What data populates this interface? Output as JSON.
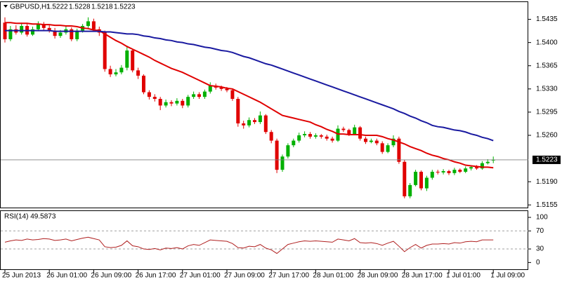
{
  "chart_data": [
    {
      "type": "candlestick",
      "title": "GBPUSD,H1",
      "categories": [
        "25 Jun 2013",
        null,
        null,
        null,
        null,
        null,
        null,
        null,
        "26 Jun 01:00",
        null,
        null,
        null,
        null,
        null,
        null,
        null,
        "26 Jun 09:00",
        null,
        null,
        null,
        null,
        null,
        null,
        null,
        "26 Jun 17:00",
        null,
        null,
        null,
        null,
        null,
        null,
        null,
        "27 Jun 01:00",
        null,
        null,
        null,
        null,
        null,
        null,
        null,
        "27 Jun 09:00",
        null,
        null,
        null,
        null,
        null,
        null,
        null,
        "27 Jun 17:00",
        null,
        null,
        null,
        null,
        null,
        null,
        null,
        "28 Jun 01:00",
        null,
        null,
        null,
        null,
        null,
        null,
        null,
        "28 Jun 09:00",
        null,
        null,
        null,
        null,
        null,
        null,
        null,
        "28 Jun 17:00",
        null,
        null,
        null,
        null,
        null,
        null,
        null,
        "1 Jul 01:00",
        null,
        null,
        null,
        null,
        null,
        null,
        null,
        "1 Jul 09:00"
      ],
      "open": [
        1.543,
        1.5405,
        1.542,
        1.5415,
        1.5425,
        1.5412,
        1.542,
        1.5428,
        1.5422,
        1.5418,
        1.541,
        1.5415,
        1.542,
        1.5405,
        1.5418,
        1.5425,
        1.5432,
        1.542,
        1.5415,
        1.536,
        1.5352,
        1.5355,
        1.5362,
        1.5388,
        1.5358,
        1.535,
        1.5325,
        1.5318,
        1.5315,
        1.5305,
        1.531,
        1.5308,
        1.5312,
        1.5305,
        1.5318,
        1.5322,
        1.5318,
        1.5326,
        1.5335,
        1.5332,
        1.533,
        1.5328,
        1.5315,
        1.5278,
        1.5275,
        1.5283,
        1.528,
        1.529,
        1.5265,
        1.5252,
        1.5208,
        1.5228,
        1.5245,
        1.5252,
        1.526,
        1.5262,
        1.5258,
        1.526,
        1.5258,
        1.5255,
        1.5252,
        1.527,
        1.5268,
        1.5262,
        1.5272,
        1.5255,
        1.525,
        1.5252,
        1.5248,
        1.5235,
        1.5245,
        1.5255,
        1.522,
        1.5168,
        1.5185,
        1.5205,
        1.518,
        1.5196,
        1.5205,
        1.5204,
        1.5206,
        1.5203,
        1.5208,
        1.5205,
        1.521,
        1.5212,
        1.521,
        1.5218,
        1.5222
      ],
      "high": [
        1.5438,
        1.5425,
        1.5426,
        1.543,
        1.5428,
        1.5424,
        1.5432,
        1.5431,
        1.5426,
        1.5422,
        1.5419,
        1.5424,
        1.5423,
        1.5421,
        1.5428,
        1.5438,
        1.5436,
        1.5424,
        1.5418,
        1.5365,
        1.536,
        1.5366,
        1.5395,
        1.539,
        1.5362,
        1.5352,
        1.5328,
        1.5322,
        1.5318,
        1.5314,
        1.5313,
        1.5316,
        1.5315,
        1.5321,
        1.5326,
        1.5325,
        1.5329,
        1.534,
        1.5338,
        1.5335,
        1.5333,
        1.533,
        1.5318,
        1.5282,
        1.5287,
        1.5286,
        1.5296,
        1.5292,
        1.5268,
        1.5255,
        1.5231,
        1.5248,
        1.5255,
        1.5264,
        1.5266,
        1.5265,
        1.5263,
        1.5262,
        1.5261,
        1.5258,
        1.5275,
        1.5273,
        1.527,
        1.5276,
        1.5274,
        1.5258,
        1.5255,
        1.5255,
        1.5251,
        1.5248,
        1.526,
        1.5258,
        1.5223,
        1.5188,
        1.5208,
        1.5207,
        1.5199,
        1.5208,
        1.5208,
        1.5209,
        1.5208,
        1.5211,
        1.521,
        1.5213,
        1.5215,
        1.5215,
        1.5221,
        1.5224,
        1.5228
      ],
      "low": [
        1.54,
        1.5402,
        1.5412,
        1.5412,
        1.5409,
        1.541,
        1.5417,
        1.5419,
        1.5415,
        1.5406,
        1.5407,
        1.5412,
        1.5402,
        1.5402,
        1.5415,
        1.5422,
        1.5417,
        1.541,
        1.5356,
        1.5348,
        1.5349,
        1.5352,
        1.5358,
        1.5355,
        1.5345,
        1.5322,
        1.5314,
        1.5311,
        1.5298,
        1.5302,
        1.5304,
        1.5305,
        1.5301,
        1.5302,
        1.5315,
        1.5315,
        1.5315,
        1.5323,
        1.5329,
        1.5327,
        1.5325,
        1.5312,
        1.5273,
        1.527,
        1.5272,
        1.5277,
        1.5277,
        1.5262,
        1.5248,
        1.5203,
        1.5205,
        1.5225,
        1.5242,
        1.5249,
        1.5257,
        1.5255,
        1.5255,
        1.5255,
        1.5252,
        1.5249,
        1.525,
        1.5265,
        1.5259,
        1.526,
        1.5252,
        1.5247,
        1.5248,
        1.5245,
        1.5232,
        1.5233,
        1.5242,
        1.5217,
        1.5165,
        1.5165,
        1.5183,
        1.5177,
        1.5176,
        1.5193,
        1.5201,
        1.5201,
        1.52,
        1.52,
        1.5203,
        1.5203,
        1.5207,
        1.5208,
        1.5208,
        1.5216,
        1.5218
      ],
      "close": [
        1.5405,
        1.542,
        1.5415,
        1.5425,
        1.5412,
        1.542,
        1.5428,
        1.5422,
        1.5418,
        1.541,
        1.5415,
        1.542,
        1.5405,
        1.5418,
        1.5425,
        1.5432,
        1.542,
        1.5415,
        1.536,
        1.5352,
        1.5355,
        1.5362,
        1.5388,
        1.5358,
        1.535,
        1.5325,
        1.5318,
        1.5315,
        1.5305,
        1.531,
        1.5308,
        1.5312,
        1.5305,
        1.5318,
        1.5322,
        1.5318,
        1.5326,
        1.5335,
        1.5332,
        1.533,
        1.5328,
        1.5315,
        1.5278,
        1.5275,
        1.5283,
        1.528,
        1.529,
        1.5265,
        1.5252,
        1.5208,
        1.5228,
        1.5245,
        1.5252,
        1.526,
        1.5262,
        1.5258,
        1.526,
        1.5258,
        1.5255,
        1.5252,
        1.527,
        1.5268,
        1.5262,
        1.5272,
        1.5255,
        1.525,
        1.5252,
        1.5248,
        1.5235,
        1.5245,
        1.5255,
        1.522,
        1.5168,
        1.5185,
        1.5205,
        1.518,
        1.5196,
        1.5205,
        1.5204,
        1.5206,
        1.5203,
        1.5208,
        1.5205,
        1.521,
        1.5212,
        1.521,
        1.5218,
        1.522,
        1.5223
      ],
      "up_color": "#00b000",
      "down_color": "#e00000",
      "overlays": [
        {
          "color": "#e00000",
          "values": [
            1.543,
            1.543,
            1.5429,
            1.5429,
            1.5429,
            1.5428,
            1.5428,
            1.5427,
            1.5427,
            1.5426,
            1.5426,
            1.5425,
            1.5425,
            1.5424,
            1.5422,
            1.5421,
            1.5419,
            1.5418,
            1.5413,
            1.5408,
            1.5403,
            1.5399,
            1.5394,
            1.539,
            1.5386,
            1.5382,
            1.5378,
            1.5373,
            1.5369,
            1.5365,
            1.5361,
            1.5358,
            1.5355,
            1.5351,
            1.5347,
            1.5343,
            1.5339,
            1.5335,
            1.5334,
            1.5333,
            1.5331,
            1.533,
            1.5326,
            1.5322,
            1.5318,
            1.5314,
            1.531,
            1.5305,
            1.53,
            1.5295,
            1.529,
            1.5288,
            1.5286,
            1.5284,
            1.5282,
            1.528,
            1.5276,
            1.5273,
            1.5269,
            1.5266,
            1.5262,
            1.5262,
            1.5261,
            1.5261,
            1.5261,
            1.526,
            1.526,
            1.526,
            1.5258,
            1.5255,
            1.5253,
            1.525,
            1.5247,
            1.5243,
            1.524,
            1.5237,
            1.5233,
            1.523,
            1.5228,
            1.5225,
            1.5223,
            1.522,
            1.5218,
            1.5215,
            1.5214,
            1.5213,
            1.5212,
            1.5212,
            1.5211
          ]
        },
        {
          "color": "#1a1aa0",
          "values": [
            1.5418,
            1.5418,
            1.5418,
            1.5418,
            1.5418,
            1.5418,
            1.5418,
            1.5418,
            1.5418,
            1.5417,
            1.5417,
            1.5417,
            1.5417,
            1.5417,
            1.5417,
            1.5417,
            1.5417,
            1.5417,
            1.5416,
            1.5416,
            1.5415,
            1.5414,
            1.5413,
            1.5413,
            1.5412,
            1.541,
            1.5409,
            1.5407,
            1.5406,
            1.5404,
            1.5403,
            1.5401,
            1.54,
            1.5398,
            1.5397,
            1.5395,
            1.5393,
            1.5392,
            1.539,
            1.5388,
            1.5387,
            1.5385,
            1.5382,
            1.5379,
            1.5377,
            1.5374,
            1.5371,
            1.5368,
            1.5366,
            1.5363,
            1.536,
            1.5357,
            1.5354,
            1.5351,
            1.5348,
            1.5345,
            1.5342,
            1.5339,
            1.5336,
            1.5333,
            1.533,
            1.5327,
            1.5324,
            1.5321,
            1.5318,
            1.5315,
            1.5312,
            1.5309,
            1.5306,
            1.5303,
            1.53,
            1.5296,
            1.5293,
            1.5289,
            1.5286,
            1.5282,
            1.5279,
            1.5275,
            1.5273,
            1.5272,
            1.527,
            1.5268,
            1.5267,
            1.5265,
            1.5262,
            1.526,
            1.5257,
            1.5255,
            1.5252
          ]
        }
      ],
      "current_price": 1.5223,
      "ylim": [
        1.5151,
        1.5461
      ],
      "yticks": [
        1.5435,
        {
          "value": 1.54,
          "label": "1.5400"
        },
        1.5365,
        {
          "value": 1.533,
          "label": "1.5330"
        },
        1.5295,
        {
          "value": 1.526,
          "label": "1.5260"
        },
        {
          "value": 1.519,
          "label": "1.5190"
        },
        1.5155
      ]
    },
    {
      "type": "line",
      "title": "RSI(14) 49.5873",
      "color": "#b02020",
      "values": [
        45,
        48,
        50,
        49,
        52,
        50,
        51,
        53,
        52,
        49,
        50,
        52,
        48,
        51,
        54,
        56,
        53,
        50,
        35,
        33,
        34,
        38,
        48,
        37,
        35,
        30,
        29,
        31,
        28,
        32,
        31,
        33,
        30,
        37,
        40,
        38,
        44,
        50,
        49,
        48,
        47,
        42,
        33,
        32,
        36,
        35,
        40,
        32,
        28,
        20,
        30,
        40,
        43,
        46,
        48,
        47,
        48,
        47,
        46,
        45,
        52,
        50,
        48,
        53,
        44,
        43,
        44,
        42,
        38,
        43,
        47,
        36,
        24,
        33,
        40,
        32,
        38,
        41,
        41,
        42,
        41,
        44,
        43,
        46,
        47,
        46,
        50,
        50,
        50
      ],
      "ylim": [
        -15,
        114
      ],
      "yticks": [
        100,
        70,
        30,
        0
      ],
      "levels": [
        70,
        30
      ]
    }
  ]
}
